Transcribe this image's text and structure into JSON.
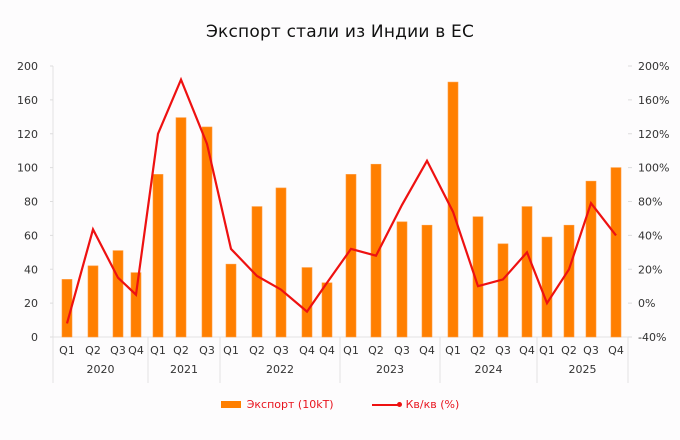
{
  "chart_data": {
    "type": "bar+line",
    "title": "Экспорт стали из Индии в ЕС",
    "xlabel": "",
    "ylabel_left": "",
    "ylabel_right": "",
    "left_axis": {
      "tick_labels": [
        "0",
        "20",
        "40",
        "60",
        "80",
        "100",
        "120",
        "160",
        "200"
      ],
      "tick_values": [
        0,
        20,
        40,
        60,
        80,
        100,
        120,
        160,
        200
      ]
    },
    "right_axis": {
      "tick_labels": [
        "-40%",
        "0%",
        "20%",
        "40%",
        "80%",
        "100%",
        "120%",
        "160%",
        "200%"
      ],
      "tick_values": [
        -40,
        0,
        20,
        40,
        80,
        100,
        120,
        160,
        200
      ]
    },
    "groups": [
      {
        "year": "2020",
        "quarters": [
          "Q1",
          "Q2",
          "Q3",
          "Q4"
        ]
      },
      {
        "year": "2021",
        "quarters": [
          "Q1",
          "Q2",
          "Q3"
        ]
      },
      {
        "year": "2022",
        "quarters": [
          "Q1",
          "Q2",
          "Q3",
          "Q4",
          "Q4"
        ]
      },
      {
        "year": "2023",
        "quarters": [
          "Q1",
          "Q2",
          "Q3",
          "Q4"
        ]
      },
      {
        "year": "2024",
        "quarters": [
          "Q1",
          "Q2",
          "Q3",
          "Q4"
        ]
      },
      {
        "year": "2025",
        "quarters": [
          "Q1",
          "Q2",
          "Q3",
          "Q4"
        ]
      }
    ],
    "categories": [
      "2020 Q1",
      "2020 Q2",
      "2020 Q3",
      "2020 Q4",
      "2021 Q1",
      "2021 Q2",
      "2021 Q3",
      "2022 Q1",
      "2022 Q2",
      "2022 Q3",
      "2022 Q4",
      "2022 Q4",
      "2023 Q1",
      "2023 Q2",
      "2023 Q3",
      "2023 Q4",
      "2024 Q1",
      "2024 Q2",
      "2024 Q3",
      "2024 Q4",
      "2025 Q1",
      "2025 Q2",
      "2025 Q3",
      "2025 Q4"
    ],
    "series": [
      {
        "name": "Экспорт (10kT)",
        "type": "bar",
        "axis": "left",
        "color": "#ff7f00",
        "values": [
          34,
          42,
          51,
          38,
          96,
          139,
          128,
          43,
          77,
          88,
          41,
          32,
          96,
          102,
          68,
          66,
          181,
          71,
          55,
          77,
          59,
          66,
          92,
          100
        ]
      },
      {
        "name": "Кв/кв (%)",
        "type": "line",
        "axis": "right",
        "color": "#ee1111",
        "values": [
          -24,
          47,
          15,
          5,
          120,
          184,
          114,
          32,
          16,
          8,
          -10,
          12,
          32,
          28,
          76,
          104,
          68,
          10,
          14,
          30,
          0,
          20,
          78,
          40
        ]
      }
    ],
    "grid": false,
    "legend_position": "bottom"
  },
  "legend": {
    "bar_label": "Экспорт (10kT)",
    "line_label": "Кв/кв (%)"
  }
}
